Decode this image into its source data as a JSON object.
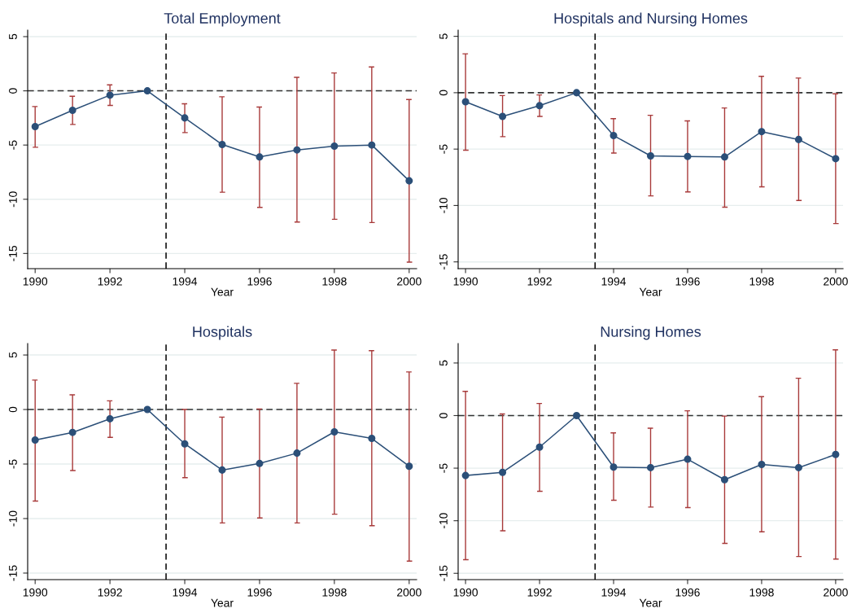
{
  "chart_data": [
    {
      "type": "line",
      "title": "Total Employment",
      "xlabel": "Year",
      "x": [
        1990,
        1991,
        1992,
        1993,
        1994,
        1995,
        1996,
        1997,
        1998,
        1999,
        2000
      ],
      "xlim": [
        1989.8,
        2000.2
      ],
      "xticks": [
        1990,
        1992,
        1994,
        1996,
        1998,
        2000
      ],
      "ylim": [
        -16.4,
        5.6
      ],
      "yticks": [
        -15,
        -10,
        -5,
        0,
        5
      ],
      "grid": "y",
      "marker": "circle",
      "line_style": "solid",
      "series": [
        {
          "color": "#2b4f78",
          "values": [
            -3.3,
            -1.8,
            -0.4,
            0,
            -2.5,
            -4.95,
            -6.1,
            -5.45,
            -5.1,
            -5.0,
            -8.3
          ],
          "errors": [
            [
              -5.2,
              -1.45
            ],
            [
              -3.1,
              -0.5
            ],
            [
              -1.35,
              0.55
            ],
            null,
            [
              -3.85,
              -1.2
            ],
            [
              -9.35,
              -0.55
            ],
            [
              -10.75,
              -1.5
            ],
            [
              -12.1,
              1.25
            ],
            [
              -11.85,
              1.65
            ],
            [
              -12.15,
              2.2
            ],
            [
              -15.8,
              -0.8
            ]
          ]
        }
      ],
      "ref_lines": [
        {
          "axis": "x",
          "value": 1993.5,
          "color": "#000000",
          "line_style": "dashed"
        },
        {
          "axis": "y",
          "value": 0,
          "color": "#333333",
          "line_style": "dashed"
        }
      ]
    },
    {
      "type": "line",
      "title": "Hospitals and Nursing Homes",
      "xlabel": "Year",
      "x": [
        1990,
        1991,
        1992,
        1993,
        1994,
        1995,
        1996,
        1997,
        1998,
        1999,
        2000
      ],
      "xlim": [
        1989.8,
        2000.2
      ],
      "xticks": [
        1990,
        1992,
        1994,
        1996,
        1998,
        2000
      ],
      "ylim": [
        -15.6,
        5.55
      ],
      "yticks": [
        -15,
        -10,
        -5,
        0,
        5
      ],
      "grid": "y",
      "marker": "circle",
      "line_style": "solid",
      "series": [
        {
          "color": "#2b4f78",
          "values": [
            -0.8,
            -2.1,
            -1.15,
            0,
            -3.8,
            -5.6,
            -5.65,
            -5.7,
            -3.45,
            -4.15,
            -5.85
          ],
          "errors": [
            [
              -5.1,
              3.45
            ],
            [
              -3.9,
              -0.25
            ],
            [
              -2.1,
              -0.2
            ],
            null,
            [
              -5.35,
              -2.3
            ],
            [
              -9.15,
              -2.0
            ],
            [
              -8.8,
              -2.5
            ],
            [
              -10.15,
              -1.35
            ],
            [
              -8.35,
              1.45
            ],
            [
              -9.55,
              1.3
            ],
            [
              -11.6,
              -0.1
            ]
          ]
        }
      ],
      "ref_lines": [
        {
          "axis": "x",
          "value": 1993.5,
          "color": "#000000",
          "line_style": "dashed"
        },
        {
          "axis": "y",
          "value": 0,
          "color": "#333333",
          "line_style": "dashed"
        }
      ]
    },
    {
      "type": "line",
      "title": "Hospitals",
      "xlabel": "Year",
      "x": [
        1990,
        1991,
        1992,
        1993,
        1994,
        1995,
        1996,
        1997,
        1998,
        1999,
        2000
      ],
      "xlim": [
        1989.8,
        2000.2
      ],
      "xticks": [
        1990,
        1992,
        1994,
        1996,
        1998,
        2000
      ],
      "ylim": [
        -15.6,
        6.05
      ],
      "yticks": [
        -15,
        -10,
        -5,
        0,
        5
      ],
      "grid": "y",
      "marker": "circle",
      "line_style": "solid",
      "series": [
        {
          "color": "#2b4f78",
          "values": [
            -2.8,
            -2.1,
            -0.85,
            0,
            -3.15,
            -5.55,
            -4.95,
            -4.0,
            -2.05,
            -2.65,
            -5.2
          ],
          "errors": [
            [
              -8.4,
              2.7
            ],
            [
              -5.6,
              1.35
            ],
            [
              -2.55,
              0.8
            ],
            null,
            [
              -6.25,
              0
            ],
            [
              -10.4,
              -0.7
            ],
            [
              -9.95,
              0.05
            ],
            [
              -10.4,
              2.4
            ],
            [
              -9.6,
              5.45
            ],
            [
              -10.65,
              5.4
            ],
            [
              -13.9,
              3.45
            ]
          ]
        }
      ],
      "ref_lines": [
        {
          "axis": "x",
          "value": 1993.5,
          "color": "#000000",
          "line_style": "dashed"
        },
        {
          "axis": "y",
          "value": 0,
          "color": "#333333",
          "line_style": "dashed"
        }
      ]
    },
    {
      "type": "line",
      "title": "Nursing Homes",
      "xlabel": "Year",
      "x": [
        1990,
        1991,
        1992,
        1993,
        1994,
        1995,
        1996,
        1997,
        1998,
        1999,
        2000
      ],
      "xlim": [
        1989.8,
        2000.2
      ],
      "xticks": [
        1990,
        1992,
        1994,
        1996,
        1998,
        2000
      ],
      "ylim": [
        -15.6,
        6.85
      ],
      "yticks": [
        -15,
        -10,
        -5,
        0,
        5
      ],
      "grid": "y",
      "marker": "circle",
      "line_style": "solid",
      "series": [
        {
          "color": "#2b4f78",
          "values": [
            -5.7,
            -5.4,
            -3.0,
            0,
            -4.9,
            -4.95,
            -4.15,
            -6.1,
            -4.65,
            -4.95,
            -3.7
          ],
          "errors": [
            [
              -13.7,
              2.3
            ],
            [
              -10.95,
              0.15
            ],
            [
              -7.2,
              1.15
            ],
            null,
            [
              -8.05,
              -1.65
            ],
            [
              -8.7,
              -1.2
            ],
            [
              -8.75,
              0.45
            ],
            [
              -12.15,
              -0.05
            ],
            [
              -11.05,
              1.8
            ],
            [
              -13.4,
              3.55
            ],
            [
              -13.65,
              6.25
            ]
          ]
        }
      ],
      "ref_lines": [
        {
          "axis": "x",
          "value": 1993.5,
          "color": "#000000",
          "line_style": "dashed"
        },
        {
          "axis": "y",
          "value": 0,
          "color": "#333333",
          "line_style": "dashed"
        }
      ]
    }
  ]
}
